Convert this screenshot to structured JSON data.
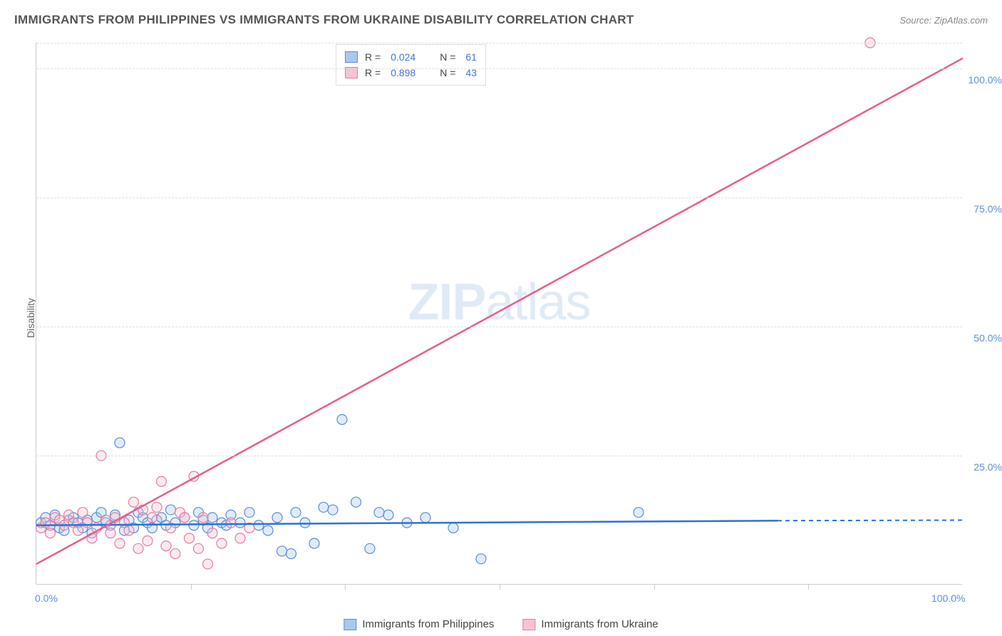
{
  "title": "IMMIGRANTS FROM PHILIPPINES VS IMMIGRANTS FROM UKRAINE DISABILITY CORRELATION CHART",
  "source": "Source: ZipAtlas.com",
  "watermark_a": "ZIP",
  "watermark_b": "atlas",
  "y_axis_title": "Disability",
  "chart": {
    "type": "scatter",
    "xlim": [
      0,
      100
    ],
    "ylim": [
      0,
      105
    ],
    "xtick_labels": [
      "0.0%",
      "100.0%"
    ],
    "xtick_positions": [
      0,
      100
    ],
    "xtick_minor": [
      16.67,
      33.33,
      50,
      66.67,
      83.33
    ],
    "ytick_labels": [
      "25.0%",
      "50.0%",
      "75.0%",
      "100.0%"
    ],
    "ytick_positions": [
      25,
      50,
      75,
      100
    ],
    "ytop_grid": 105,
    "background_color": "#ffffff",
    "grid_color": "#dddddd",
    "axis_color": "#cccccc",
    "label_color": "#5b8fd6",
    "marker_radius": 7,
    "series": [
      {
        "name": "Immigrants from Philippines",
        "fill": "#a9c7ec",
        "stroke": "#5b8fd6",
        "R": "0.024",
        "N": "61",
        "regression": {
          "x1": 0,
          "y1": 11.5,
          "x2": 80,
          "y2": 12.4,
          "dash_x2": 100,
          "dash_y2": 12.5
        },
        "line_color": "#2f72d4",
        "data": [
          [
            0.5,
            12
          ],
          [
            1,
            13
          ],
          [
            1.5,
            11.5
          ],
          [
            2,
            13.5
          ],
          [
            2.5,
            11
          ],
          [
            3,
            10.5
          ],
          [
            3.5,
            12.5
          ],
          [
            4,
            13
          ],
          [
            4.5,
            12
          ],
          [
            5,
            11
          ],
          [
            5.5,
            12.5
          ],
          [
            6,
            10
          ],
          [
            6.5,
            13
          ],
          [
            7,
            14
          ],
          [
            7.5,
            12
          ],
          [
            8,
            11.5
          ],
          [
            8.5,
            13.5
          ],
          [
            9,
            27.5
          ],
          [
            9.5,
            10.5
          ],
          [
            10,
            12.5
          ],
          [
            10.5,
            11
          ],
          [
            11,
            14
          ],
          [
            11.5,
            13
          ],
          [
            12,
            12
          ],
          [
            12.5,
            11
          ],
          [
            13,
            12.5
          ],
          [
            13.5,
            13
          ],
          [
            14,
            11.5
          ],
          [
            14.5,
            14.5
          ],
          [
            15,
            12
          ],
          [
            16,
            13
          ],
          [
            17,
            11.5
          ],
          [
            17.5,
            14
          ],
          [
            18,
            12.5
          ],
          [
            18.5,
            11
          ],
          [
            19,
            13
          ],
          [
            20,
            12
          ],
          [
            20.5,
            11.5
          ],
          [
            21,
            13.5
          ],
          [
            22,
            12
          ],
          [
            23,
            14
          ],
          [
            24,
            11.5
          ],
          [
            25,
            10.5
          ],
          [
            26,
            13
          ],
          [
            26.5,
            6.5
          ],
          [
            27.5,
            6
          ],
          [
            28,
            14
          ],
          [
            29,
            12
          ],
          [
            30,
            8
          ],
          [
            31,
            15
          ],
          [
            32,
            14.5
          ],
          [
            33,
            32
          ],
          [
            34.5,
            16
          ],
          [
            36,
            7
          ],
          [
            37,
            14
          ],
          [
            38,
            13.5
          ],
          [
            40,
            12
          ],
          [
            42,
            13
          ],
          [
            45,
            11
          ],
          [
            48,
            5
          ],
          [
            65,
            14
          ]
        ]
      },
      {
        "name": "Immigrants from Ukraine",
        "fill": "#f6c3d0",
        "stroke": "#e87ba0",
        "R": "0.898",
        "N": "43",
        "regression": {
          "x1": 0,
          "y1": 4,
          "x2": 100,
          "y2": 102
        },
        "line_color": "#e85d8f",
        "data": [
          [
            0.5,
            11
          ],
          [
            1,
            12
          ],
          [
            1.5,
            10
          ],
          [
            2,
            13
          ],
          [
            2.5,
            12.5
          ],
          [
            3,
            11.5
          ],
          [
            3.5,
            13.5
          ],
          [
            4,
            12
          ],
          [
            4.5,
            10.5
          ],
          [
            5,
            14
          ],
          [
            5.5,
            12
          ],
          [
            6,
            9
          ],
          [
            6.5,
            11
          ],
          [
            7,
            25
          ],
          [
            7.5,
            12.5
          ],
          [
            8,
            10
          ],
          [
            8.5,
            13
          ],
          [
            9,
            8
          ],
          [
            9.5,
            12
          ],
          [
            10,
            10.5
          ],
          [
            10.5,
            16
          ],
          [
            11,
            7
          ],
          [
            11.5,
            14.5
          ],
          [
            12,
            8.5
          ],
          [
            12.5,
            13
          ],
          [
            13,
            15
          ],
          [
            13.5,
            20
          ],
          [
            14,
            7.5
          ],
          [
            14.5,
            11
          ],
          [
            15,
            6
          ],
          [
            15.5,
            14
          ],
          [
            16,
            13
          ],
          [
            16.5,
            9
          ],
          [
            17,
            21
          ],
          [
            17.5,
            7
          ],
          [
            18,
            13
          ],
          [
            18.5,
            4
          ],
          [
            19,
            10
          ],
          [
            20,
            8
          ],
          [
            21,
            12
          ],
          [
            22,
            9
          ],
          [
            23,
            11
          ],
          [
            90,
            105
          ]
        ]
      }
    ]
  },
  "stats_legend": {
    "rows": [
      {
        "swatch_fill": "#a9c7ec",
        "swatch_stroke": "#5b8fd6",
        "r_label": "R =",
        "r_val": "0.024",
        "n_label": "N =",
        "n_val": "61"
      },
      {
        "swatch_fill": "#f6c3d0",
        "swatch_stroke": "#e87ba0",
        "r_label": "R =",
        "r_val": "0.898",
        "n_label": "N =",
        "n_val": "43"
      }
    ]
  },
  "bottom_legend": [
    {
      "swatch_fill": "#a9c7ec",
      "swatch_stroke": "#5b8fd6",
      "label": "Immigrants from Philippines"
    },
    {
      "swatch_fill": "#f6c3d0",
      "swatch_stroke": "#e87ba0",
      "label": "Immigrants from Ukraine"
    }
  ]
}
